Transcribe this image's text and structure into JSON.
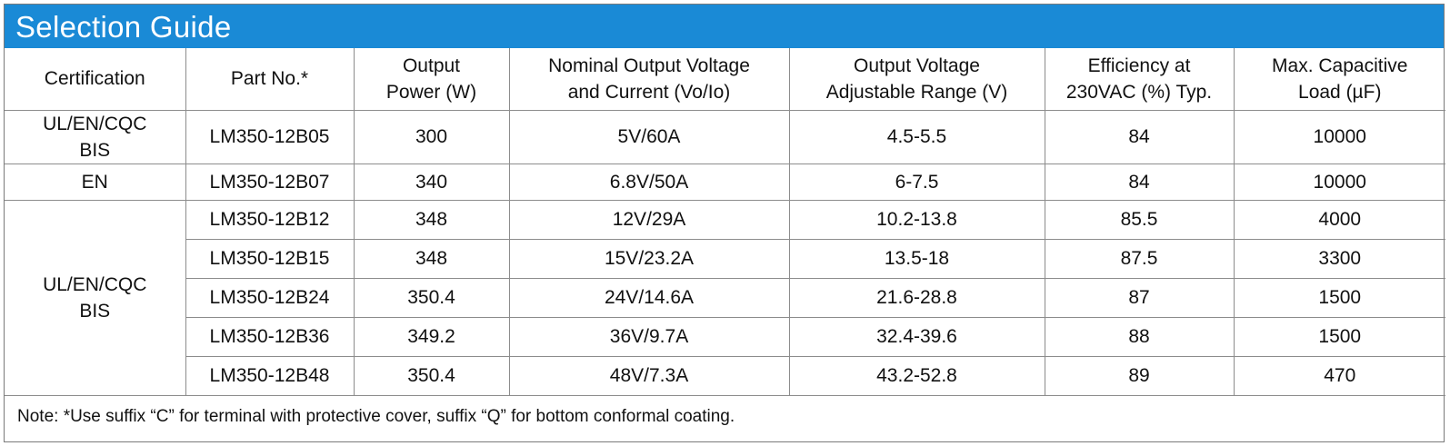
{
  "title": "Selection Guide",
  "headers": {
    "certification": "Certification",
    "part_no": "Part No.*",
    "output_power": [
      "Output",
      "Power (W)"
    ],
    "nominal": [
      "Nominal Output Voltage",
      "and Current (Vo/Io)"
    ],
    "adjust": [
      "Output Voltage",
      "Adjustable Range (V)"
    ],
    "efficiency": [
      "Efficiency at",
      "230VAC (%) Typ."
    ],
    "capacitive": [
      "Max. Capacitive",
      "Load (µF)"
    ]
  },
  "cert_groups": [
    [
      "UL/EN/CQC",
      "BIS"
    ],
    [
      "EN"
    ],
    [
      "UL/EN/CQC",
      "BIS"
    ]
  ],
  "rows": [
    {
      "part": "LM350-12B05",
      "power": "300",
      "vo_io": "5V/60A",
      "range": "4.5-5.5",
      "eff": "84",
      "cap": "10000"
    },
    {
      "part": "LM350-12B07",
      "power": "340",
      "vo_io": "6.8V/50A",
      "range": "6-7.5",
      "eff": "84",
      "cap": "10000"
    },
    {
      "part": "LM350-12B12",
      "power": "348",
      "vo_io": "12V/29A",
      "range": "10.2-13.8",
      "eff": "85.5",
      "cap": "4000"
    },
    {
      "part": "LM350-12B15",
      "power": "348",
      "vo_io": "15V/23.2A",
      "range": "13.5-18",
      "eff": "87.5",
      "cap": "3300"
    },
    {
      "part": "LM350-12B24",
      "power": "350.4",
      "vo_io": "24V/14.6A",
      "range": "21.6-28.8",
      "eff": "87",
      "cap": "1500"
    },
    {
      "part": "LM350-12B36",
      "power": "349.2",
      "vo_io": "36V/9.7A",
      "range": "32.4-39.6",
      "eff": "88",
      "cap": "1500"
    },
    {
      "part": "LM350-12B48",
      "power": "350.4",
      "vo_io": "48V/7.3A",
      "range": "43.2-52.8",
      "eff": "89",
      "cap": "470"
    }
  ],
  "note": "Note: *Use suffix “C” for terminal with protective cover, suffix “Q” for bottom conformal coating.",
  "colors": {
    "title_bar": "#1a8ad6",
    "title_text": "#ffffff",
    "grid": "#8c8c8c"
  }
}
